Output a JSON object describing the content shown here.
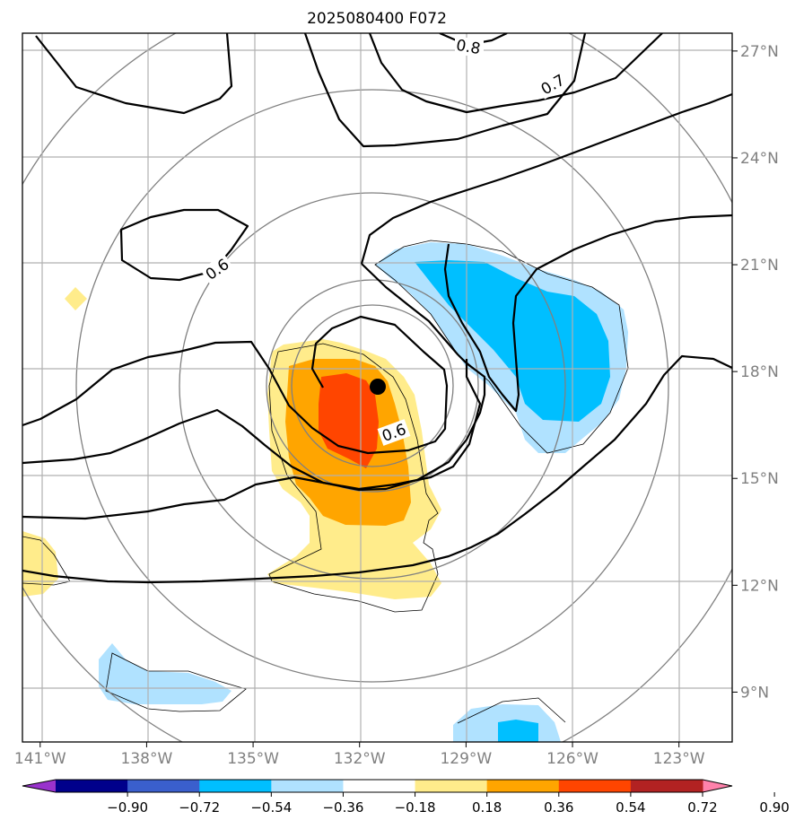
{
  "chart_data": {
    "type": "heatmap",
    "title": "2025080400 F072",
    "x_ticks": [
      "141°W",
      "138°W",
      "135°W",
      "132°W",
      "129°W",
      "126°W",
      "123°W"
    ],
    "y_ticks": [
      "27°N",
      "24°N",
      "21°N",
      "18°N",
      "15°N",
      "12°N",
      "9°N"
    ],
    "xlim": [
      -141.5,
      -121.5
    ],
    "ylim": [
      7.6,
      27.5
    ],
    "grid": true,
    "center_marker": {
      "lon": -131.5,
      "lat": 17.5
    },
    "colorbar": {
      "tick_labels": [
        "−0.90",
        "−0.72",
        "−0.54",
        "−0.36",
        "−0.18",
        "0.18",
        "0.36",
        "0.54",
        "0.72",
        "0.90"
      ],
      "colors": [
        "#9932cc",
        "#00008b",
        "#3a5fcd",
        "#00bfff",
        "#b0e2ff",
        "#ffffff",
        "#ffec8b",
        "#ffa500",
        "#ff4500",
        "#b22222",
        "#ff82ab"
      ],
      "extend": "both"
    },
    "contour_labels": [
      "0.8",
      "0.7",
      "0.6",
      "0.6"
    ]
  },
  "colors": {
    "yellow": "#ffec8b",
    "orange": "#ffa500",
    "red": "#ff4500",
    "lightblue": "#b0e2ff",
    "blue": "#00bfff",
    "grid": "#b0b0b0",
    "ring": "#808080"
  }
}
